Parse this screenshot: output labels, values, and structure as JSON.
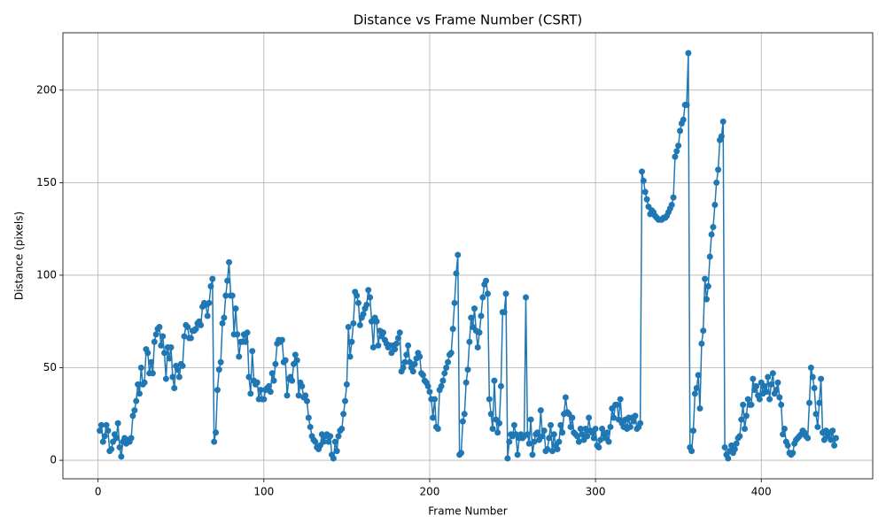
{
  "chart_data": {
    "type": "line",
    "title": "Distance vs Frame Number (CSRT)",
    "x_label": "Frame Number",
    "y_label": "Distance (pixels)",
    "color": "#1f77b4",
    "grid": true,
    "markers": true,
    "xlim": [
      -21.2,
      467.2
    ],
    "ylim": [
      -10,
      231
    ],
    "xticks": [
      0,
      100,
      200,
      300,
      400
    ],
    "yticks": [
      0,
      50,
      100,
      150,
      200
    ],
    "x": [
      1,
      2,
      3,
      4,
      5,
      6,
      7,
      8,
      9,
      10,
      11,
      12,
      13,
      14,
      15,
      16,
      17,
      18,
      19,
      20,
      21,
      22,
      23,
      24,
      25,
      26,
      27,
      28,
      29,
      30,
      31,
      32,
      33,
      34,
      35,
      36,
      37,
      38,
      39,
      40,
      41,
      42,
      43,
      44,
      45,
      46,
      47,
      48,
      49,
      50,
      51,
      52,
      53,
      54,
      55,
      56,
      57,
      58,
      59,
      60,
      61,
      62,
      63,
      64,
      65,
      66,
      67,
      68,
      69,
      70,
      71,
      72,
      73,
      74,
      75,
      76,
      77,
      78,
      79,
      80,
      81,
      82,
      83,
      84,
      85,
      86,
      87,
      88,
      89,
      90,
      91,
      92,
      93,
      94,
      95,
      96,
      97,
      98,
      99,
      100,
      101,
      102,
      103,
      104,
      105,
      106,
      107,
      108,
      109,
      110,
      111,
      112,
      113,
      114,
      115,
      116,
      117,
      118,
      119,
      120,
      121,
      122,
      123,
      124,
      125,
      126,
      127,
      128,
      129,
      130,
      131,
      132,
      133,
      134,
      135,
      136,
      137,
      138,
      139,
      140,
      141,
      142,
      143,
      144,
      145,
      146,
      147,
      148,
      149,
      150,
      151,
      152,
      153,
      154,
      155,
      156,
      157,
      158,
      159,
      160,
      161,
      162,
      163,
      164,
      165,
      166,
      167,
      168,
      169,
      170,
      171,
      172,
      173,
      174,
      175,
      176,
      177,
      178,
      179,
      180,
      181,
      182,
      183,
      184,
      185,
      186,
      187,
      188,
      189,
      190,
      191,
      192,
      193,
      194,
      195,
      196,
      197,
      198,
      199,
      200,
      201,
      202,
      203,
      204,
      205,
      206,
      207,
      208,
      209,
      210,
      211,
      212,
      213,
      214,
      215,
      216,
      217,
      218,
      219,
      220,
      221,
      222,
      223,
      224,
      225,
      226,
      227,
      228,
      229,
      230,
      231,
      232,
      233,
      234,
      235,
      236,
      237,
      238,
      239,
      240,
      241,
      242,
      243,
      244,
      245,
      246,
      247,
      248,
      249,
      250,
      251,
      252,
      253,
      254,
      255,
      256,
      257,
      258,
      259,
      260,
      261,
      262,
      263,
      264,
      265,
      266,
      267,
      268,
      269,
      270,
      271,
      272,
      273,
      274,
      275,
      276,
      277,
      278,
      279,
      280,
      281,
      282,
      283,
      284,
      285,
      286,
      287,
      288,
      289,
      290,
      291,
      292,
      293,
      294,
      295,
      296,
      297,
      298,
      299,
      300,
      301,
      302,
      303,
      304,
      305,
      306,
      307,
      308,
      309,
      310,
      311,
      312,
      313,
      314,
      315,
      316,
      317,
      318,
      319,
      320,
      321,
      322,
      323,
      324,
      325,
      326,
      327,
      328,
      329,
      330,
      331,
      332,
      333,
      334,
      335,
      336,
      337,
      338,
      339,
      340,
      341,
      342,
      343,
      344,
      345,
      346,
      347,
      348,
      349,
      350,
      351,
      352,
      353,
      354,
      355,
      356,
      357,
      358,
      359,
      360,
      361,
      362,
      363,
      364,
      365,
      366,
      367,
      368,
      369,
      370,
      371,
      372,
      373,
      374,
      375,
      376,
      377,
      378,
      379,
      380,
      381,
      382,
      383,
      384,
      385,
      386,
      387,
      388,
      389,
      390,
      391,
      392,
      393,
      394,
      395,
      396,
      397,
      398,
      399,
      400,
      401,
      402,
      403,
      404,
      405,
      406,
      407,
      408,
      409,
      410,
      411,
      412,
      413,
      414,
      415,
      416,
      417,
      418,
      419,
      420,
      421,
      422,
      423,
      424,
      425,
      426,
      427,
      428,
      429,
      430,
      431,
      432,
      433,
      434,
      435,
      436,
      437,
      438,
      439,
      440,
      441,
      442,
      443,
      444,
      445
    ],
    "values": [
      16,
      19,
      10,
      13,
      19,
      16,
      5,
      6,
      10,
      14,
      12,
      20,
      7,
      2,
      10,
      12,
      9,
      11,
      10,
      12,
      24,
      27,
      32,
      41,
      36,
      50,
      41,
      42,
      60,
      58,
      47,
      53,
      47,
      64,
      68,
      71,
      72,
      62,
      67,
      58,
      44,
      61,
      55,
      61,
      45,
      39,
      51,
      49,
      45,
      52,
      51,
      67,
      73,
      72,
      66,
      66,
      70,
      70,
      71,
      74,
      75,
      73,
      83,
      85,
      84,
      78,
      85,
      94,
      98,
      10,
      15,
      38,
      49,
      53,
      74,
      77,
      89,
      97,
      107,
      89,
      89,
      68,
      82,
      68,
      56,
      64,
      64,
      68,
      64,
      69,
      45,
      36,
      59,
      43,
      41,
      42,
      33,
      38,
      33,
      33,
      38,
      39,
      40,
      37,
      47,
      43,
      52,
      63,
      65,
      64,
      65,
      53,
      54,
      35,
      44,
      45,
      43,
      52,
      57,
      54,
      35,
      42,
      40,
      34,
      35,
      32,
      23,
      18,
      13,
      11,
      10,
      7,
      6,
      8,
      14,
      10,
      13,
      14,
      10,
      13,
      3,
      1,
      10,
      5,
      13,
      16,
      17,
      25,
      32,
      41,
      72,
      56,
      64,
      74,
      91,
      89,
      85,
      73,
      77,
      79,
      82,
      84,
      92,
      88,
      75,
      61,
      77,
      75,
      62,
      70,
      67,
      69,
      65,
      63,
      61,
      62,
      58,
      62,
      60,
      63,
      66,
      69,
      48,
      50,
      53,
      57,
      62,
      53,
      50,
      48,
      52,
      55,
      58,
      56,
      47,
      46,
      43,
      42,
      40,
      37,
      33,
      23,
      33,
      18,
      17,
      38,
      40,
      43,
      47,
      50,
      53,
      57,
      58,
      71,
      85,
      101,
      111,
      3,
      4,
      21,
      25,
      42,
      49,
      64,
      77,
      72,
      82,
      70,
      61,
      69,
      78,
      88,
      95,
      97,
      90,
      33,
      25,
      17,
      43,
      22,
      15,
      20,
      40,
      80,
      80,
      90,
      1,
      10,
      14,
      13,
      19,
      14,
      3,
      12,
      14,
      12,
      13,
      88,
      14,
      9,
      22,
      3,
      10,
      14,
      15,
      11,
      27,
      13,
      16,
      5,
      6,
      12,
      19,
      5,
      14,
      8,
      6,
      10,
      19,
      15,
      25,
      34,
      26,
      25,
      18,
      23,
      15,
      14,
      13,
      10,
      17,
      14,
      11,
      17,
      13,
      23,
      16,
      15,
      12,
      17,
      8,
      7,
      11,
      17,
      14,
      12,
      15,
      10,
      18,
      28,
      23,
      30,
      30,
      22,
      33,
      20,
      18,
      22,
      17,
      23,
      18,
      23,
      21,
      24,
      17,
      18,
      20,
      156,
      151,
      145,
      141,
      137,
      133,
      135,
      134,
      132,
      131,
      130,
      130,
      130,
      131,
      131,
      132,
      134,
      136,
      138,
      142,
      164,
      167,
      170,
      178,
      182,
      184,
      192,
      192,
      220,
      7,
      5,
      16,
      36,
      39,
      46,
      28,
      63,
      70,
      98,
      87,
      94,
      110,
      122,
      126,
      138,
      150,
      157,
      173,
      175,
      183,
      7,
      3,
      1,
      5,
      8,
      4,
      6,
      9,
      12,
      13,
      22,
      30,
      17,
      24,
      33,
      30,
      30,
      44,
      38,
      40,
      35,
      33,
      42,
      36,
      40,
      37,
      45,
      33,
      41,
      47,
      36,
      38,
      42,
      34,
      30,
      14,
      17,
      10,
      8,
      4,
      3,
      4,
      9,
      11,
      12,
      13,
      14,
      16,
      15,
      13,
      12,
      31,
      50,
      45,
      39,
      25,
      18,
      31,
      44,
      15,
      11,
      16,
      13,
      15,
      11,
      16,
      8,
      12
    ]
  }
}
